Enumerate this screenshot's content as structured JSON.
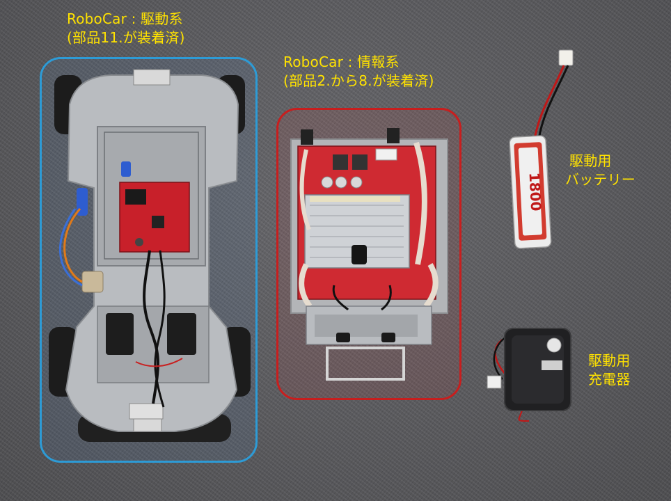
{
  "labels": {
    "drive_system": {
      "line1": "RoboCar : 駆動系",
      "line2": "(部品11.が装着済)"
    },
    "info_system": {
      "line1": "RoboCar : 情報系",
      "line2": "(部品2.から8.が装着済)"
    },
    "battery": {
      "line1": "駆動用",
      "line2": "バッテリー"
    },
    "charger": {
      "line1": "駆動用",
      "line2": "充電器"
    }
  },
  "colors": {
    "label_text": "#ffe200",
    "drive_box_border": "#2d9bd6",
    "info_box_border": "#c81e1e",
    "carpet": "#58585a"
  },
  "battery_print": "1800"
}
